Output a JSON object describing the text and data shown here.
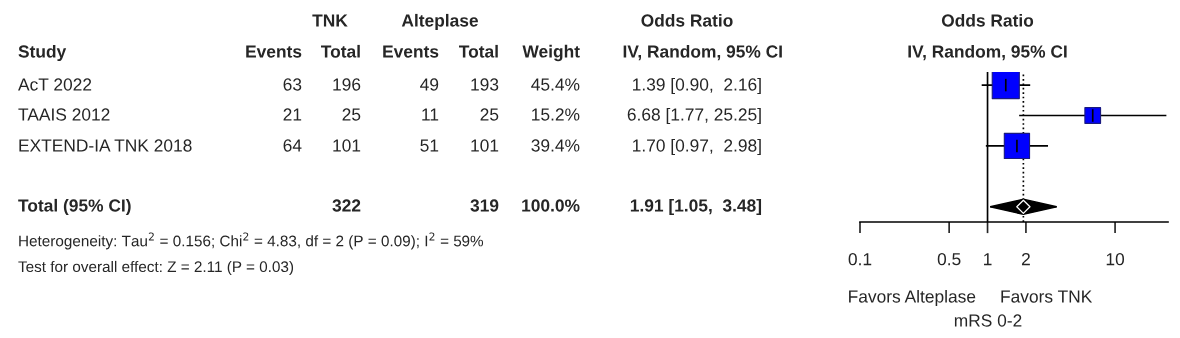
{
  "chart_data": [
    {
      "type": "other",
      "annotations": [
        "TNK",
        "Alteplase",
        "Odds Ratio",
        "Study",
        "Events",
        "Total",
        "Events",
        "Total",
        "Weight",
        "IV, Random, 95% CI",
        "AcT 2022",
        "63",
        "196",
        "49",
        "193",
        "45.4%",
        "1.39 [0.90,  2.16]",
        "TAAIS 2012",
        "21",
        "25",
        "11",
        "25",
        "15.2%",
        "6.68 [1.77, 25.25]",
        "EXTEND-IA TNK 2018",
        "64",
        "101",
        "51",
        "101",
        "39.4%",
        "1.70 [0.97,  2.98]",
        "Total (95% CI)",
        "322",
        "319",
        "100.0%",
        "1.91 [1.05,  3.48]",
        "Heterogeneity: Tau$^{2}$ = 0.156; Chi$^{2}$ = 4.83, df = 2 (P = 0.09); I$^{2}$ = 59%",
        "Test for overall effect: Z = 2.11 (P = 0.03)"
      ]
    },
    {
      "type": "scatter",
      "orientation": "horizontal",
      "title": "Odds Ratio",
      "subtitle": "IV, Random, 95% CI",
      "xlabel": "mRS 0-2",
      "categories": [
        null,
        null,
        null,
        null,
        null
      ],
      "series": [
        {
          "type": "bubble",
          "color": "#0000ff",
          "marker": "square",
          "values": [
            1.39,
            6.68,
            1.7,
            null,
            null
          ],
          "errors": [
            [
              0.9,
              2.16
            ],
            [
              1.77,
              25.25
            ],
            [
              0.97,
              2.98
            ],
            null,
            null
          ],
          "sizes": [
            1,
            0.335,
            0.868,
            null,
            null
          ]
        },
        {
          "type": "scatter",
          "color": "#000000",
          "marker": "diamond",
          "values": [
            null,
            null,
            null,
            null,
            1.91
          ],
          "errors": [
            null,
            null,
            null,
            null,
            [
              1.05,
              3.48
            ]
          ]
        }
      ],
      "log": "x",
      "xlim": [
        0.1,
        26
      ],
      "xticks": [
        0.1,
        0.5,
        1,
        2,
        10
      ],
      "ref_lines": [
        {
          "axis": "x",
          "value": 1,
          "line_style": "solid",
          "color": "#000000"
        },
        {
          "axis": "x",
          "value": 1.91,
          "line_style": "dotted",
          "color": "#000000"
        }
      ],
      "annotations": [
        "Favors Alteplase",
        "Favors TNK"
      ],
      "grid": false,
      "legend": false,
      "tick_labels": "x"
    }
  ]
}
